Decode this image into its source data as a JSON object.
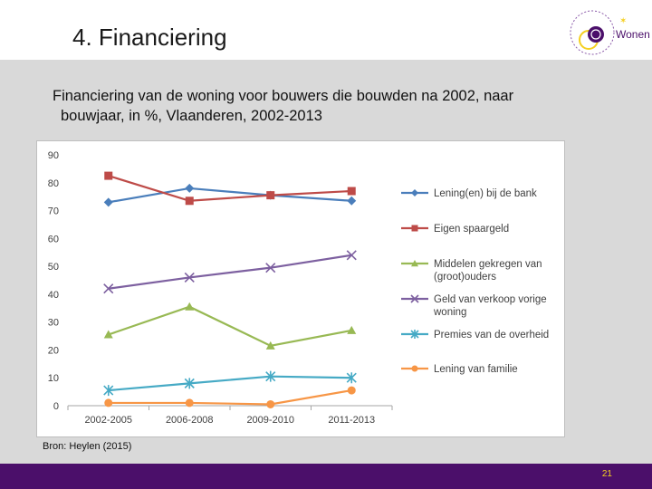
{
  "slide": {
    "title": "4. Financiering",
    "subtitle_line1": "Financiering van de woning voor bouwers die bouwden na 2002, naar",
    "subtitle_line2": "bouwjaar, in %, Vlaanderen, 2002-2013",
    "source": "Bron: Heylen (2015)",
    "page_number": "21",
    "logo_text": "Wonen"
  },
  "colors": {
    "footer": "#4b0f6a",
    "page_number": "#f5d020",
    "band": "#d9d9d9"
  },
  "chart_data": {
    "type": "line",
    "categories": [
      "2002-2005",
      "2006-2008",
      "2009-2010",
      "2011-2013"
    ],
    "ylim": [
      0,
      90
    ],
    "yticks": [
      0,
      10,
      20,
      30,
      40,
      50,
      60,
      70,
      80,
      90
    ],
    "xlabel": "",
    "ylabel": "",
    "grid": false,
    "legend": "right",
    "series": [
      {
        "name": "Lening(en) bij de bank",
        "values": [
          73,
          78,
          75.5,
          73.5
        ],
        "color": "#4a7ebb",
        "marker": "diamond"
      },
      {
        "name": "Eigen spaargeld",
        "values": [
          82.5,
          73.5,
          75.5,
          77
        ],
        "color": "#be4b48",
        "marker": "square"
      },
      {
        "name": "Middelen gekregen van (groot)ouders",
        "values": [
          25.5,
          35.5,
          21.5,
          27
        ],
        "color": "#98b954",
        "marker": "triangle"
      },
      {
        "name": "Geld van verkoop vorige woning",
        "values": [
          42,
          46,
          49.5,
          54
        ],
        "color": "#7d60a0",
        "marker": "x"
      },
      {
        "name": "Premies van de overheid",
        "values": [
          5.5,
          8,
          10.5,
          10
        ],
        "color": "#46aac5",
        "marker": "star"
      },
      {
        "name": "Lening van familie",
        "values": [
          1,
          1,
          0.5,
          5.5
        ],
        "color": "#f79646",
        "marker": "circle"
      }
    ]
  }
}
